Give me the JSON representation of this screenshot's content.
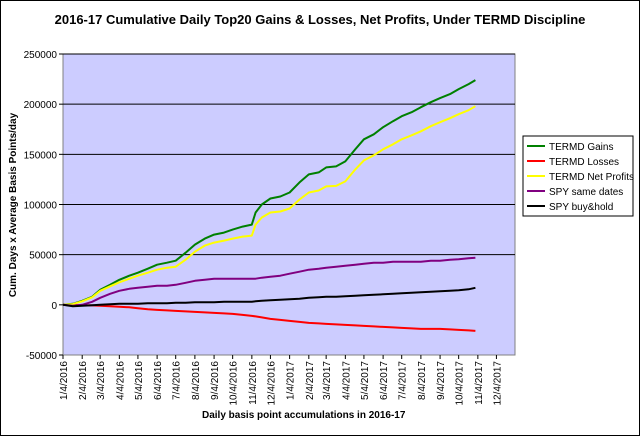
{
  "chart_data": {
    "type": "line",
    "title": "2016-17 Cumulative Daily Top20 Gains & Losses, Net Profits, Under TERMD Discipline",
    "xlabel": "Daily basis point accumulations in 2016-17",
    "ylabel": "Cum. Days x Average Basis Points/day",
    "x_ticks": [
      "1/4/2016",
      "2/4/2016",
      "3/4/2016",
      "4/4/2016",
      "5/4/2016",
      "6/4/2016",
      "7/4/2016",
      "8/4/2016",
      "9/4/2016",
      "10/4/2016",
      "11/4/2016",
      "12/4/2016",
      "1/4/2017",
      "2/4/2017",
      "3/4/2017",
      "4/4/2017",
      "5/4/2017",
      "6/4/2017",
      "7/4/2017",
      "8/4/2017",
      "9/4/2017",
      "10/4/2017",
      "11/4/2017",
      "12/4/2017"
    ],
    "y_ticks": [
      "250000",
      "200000",
      "150000",
      "100000",
      "50000",
      "0",
      "-50000"
    ],
    "ylim": [
      -50000,
      250000
    ],
    "y_gridlines": [
      50000,
      100000,
      150000,
      200000,
      250000
    ],
    "plot_background": "#ccccff",
    "legend_position": "right",
    "x": [
      "1/4/2016",
      "1/20/2016",
      "2/4/2016",
      "2/20/2016",
      "3/4/2016",
      "3/20/2016",
      "4/4/2016",
      "4/20/2016",
      "5/4/2016",
      "5/20/2016",
      "6/4/2016",
      "6/20/2016",
      "7/4/2016",
      "7/20/2016",
      "8/4/2016",
      "8/20/2016",
      "9/4/2016",
      "9/20/2016",
      "10/4/2016",
      "10/20/2016",
      "11/4/2016",
      "11/10/2016",
      "11/20/2016",
      "12/4/2016",
      "12/20/2016",
      "1/4/2017",
      "1/20/2017",
      "2/4/2017",
      "2/20/2017",
      "3/4/2017",
      "3/20/2017",
      "4/4/2017",
      "4/20/2017",
      "5/4/2017",
      "5/20/2017",
      "6/4/2017",
      "6/20/2017",
      "7/4/2017",
      "7/20/2017",
      "8/4/2017",
      "8/20/2017",
      "9/4/2017",
      "9/20/2017",
      "10/4/2017",
      "10/20/2017",
      "10/31/2017"
    ],
    "series": [
      {
        "name": "TERMD Gains",
        "color": "#008000",
        "values": [
          0,
          1000,
          4000,
          8000,
          15000,
          20000,
          25000,
          29000,
          32000,
          36000,
          40000,
          42000,
          44000,
          52000,
          60000,
          66000,
          70000,
          72000,
          75000,
          78000,
          80000,
          92000,
          100000,
          106000,
          108000,
          112000,
          122000,
          130000,
          132000,
          137000,
          138000,
          143000,
          155000,
          165000,
          170000,
          177000,
          183000,
          188000,
          192000,
          197000,
          202000,
          206000,
          210000,
          215000,
          220000,
          224000
        ]
      },
      {
        "name": "TERMD Losses",
        "color": "#ff0000",
        "values": [
          0,
          -200,
          -400,
          -600,
          -1000,
          -1500,
          -2000,
          -2500,
          -3500,
          -4500,
          -5000,
          -5500,
          -6000,
          -6500,
          -7000,
          -7500,
          -8000,
          -8500,
          -9000,
          -10000,
          -11000,
          -11500,
          -12500,
          -14000,
          -15000,
          -16000,
          -17000,
          -18000,
          -18500,
          -19000,
          -19500,
          -20000,
          -20500,
          -21000,
          -21500,
          -22000,
          -22500,
          -23000,
          -23500,
          -24000,
          -24000,
          -24000,
          -24500,
          -25000,
          -25500,
          -26000
        ]
      },
      {
        "name": "TERMD Net Profits",
        "color": "#ffff00",
        "values": [
          0,
          700,
          3500,
          7500,
          14000,
          18500,
          22500,
          26000,
          29000,
          32000,
          35000,
          37000,
          38000,
          45000,
          53000,
          59000,
          62000,
          64000,
          66000,
          68000,
          69000,
          80000,
          87000,
          92000,
          93000,
          96000,
          105000,
          112000,
          114000,
          118000,
          118500,
          123000,
          135000,
          144000,
          149000,
          155000,
          160000,
          165000,
          169000,
          173000,
          178000,
          182000,
          186000,
          190000,
          194000,
          198000
        ]
      },
      {
        "name": "SPY same dates",
        "color": "#800080",
        "values": [
          0,
          -1000,
          0,
          3000,
          7000,
          11000,
          14000,
          16000,
          17000,
          18000,
          19000,
          19000,
          20000,
          22000,
          24000,
          25000,
          26000,
          26000,
          26000,
          26000,
          26000,
          26000,
          27000,
          28000,
          29000,
          31000,
          33000,
          35000,
          36000,
          37000,
          38000,
          39000,
          40000,
          41000,
          42000,
          42000,
          43000,
          43000,
          43000,
          43000,
          44000,
          44000,
          45000,
          45500,
          46500,
          47000
        ]
      },
      {
        "name": "SPY buy&hold",
        "color": "#000000",
        "values": [
          0,
          -1500,
          -1000,
          -500,
          0,
          500,
          1000,
          1000,
          1000,
          1500,
          1500,
          1500,
          2000,
          2000,
          2500,
          2500,
          2500,
          3000,
          3000,
          3000,
          3000,
          3500,
          4000,
          4500,
          5000,
          5500,
          6000,
          7000,
          7500,
          8000,
          8000,
          8500,
          9000,
          9500,
          10000,
          10500,
          11000,
          11500,
          12000,
          12500,
          13000,
          13500,
          14000,
          14500,
          15500,
          17000
        ]
      }
    ]
  }
}
